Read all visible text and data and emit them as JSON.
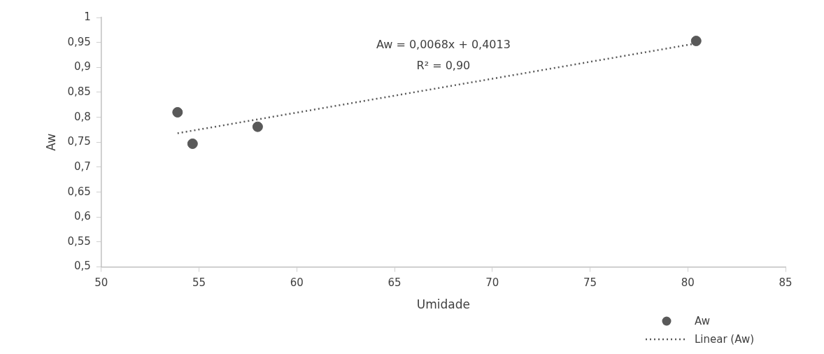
{
  "chart_data": {
    "type": "scatter",
    "xlabel": "Umidade",
    "ylabel": "Aw",
    "series": [
      {
        "name": "Aw",
        "color": "#595959",
        "marker": "circle",
        "x": [
          53.9,
          54.67,
          58.0,
          80.43
        ],
        "values": [
          0.81,
          0.747,
          0.781,
          0.953
        ]
      },
      {
        "name": "Linear (Aw)",
        "type": "line",
        "color": "#595959",
        "marker": "none",
        "line_style": "dotted",
        "x": [
          53.9,
          80.43
        ],
        "values": [
          0.768,
          0.948
        ]
      }
    ],
    "xlim": [
      50,
      85
    ],
    "xticks": [
      50,
      55,
      60,
      65,
      70,
      75,
      80,
      85
    ],
    "ylim": [
      0.5,
      1
    ],
    "yticks": [
      {
        "value": 0.5,
        "label": "0,5"
      },
      {
        "value": 0.55,
        "label": "0,55"
      },
      {
        "value": 0.6,
        "label": "0,6"
      },
      {
        "value": 0.65,
        "label": "0,65"
      },
      {
        "value": 0.7,
        "label": "0,7"
      },
      {
        "value": 0.75,
        "label": "0,75"
      },
      {
        "value": 0.8,
        "label": "0,8"
      },
      {
        "value": 0.85,
        "label": "0,85"
      },
      {
        "value": 0.9,
        "label": "0,9"
      },
      {
        "value": 0.95,
        "label": "0,95"
      },
      {
        "value": 1,
        "label": "1"
      }
    ],
    "annotations": [
      "Aw = 0,0068x + 0,4013",
      "R² = 0,90"
    ],
    "legend": "bottom right"
  }
}
